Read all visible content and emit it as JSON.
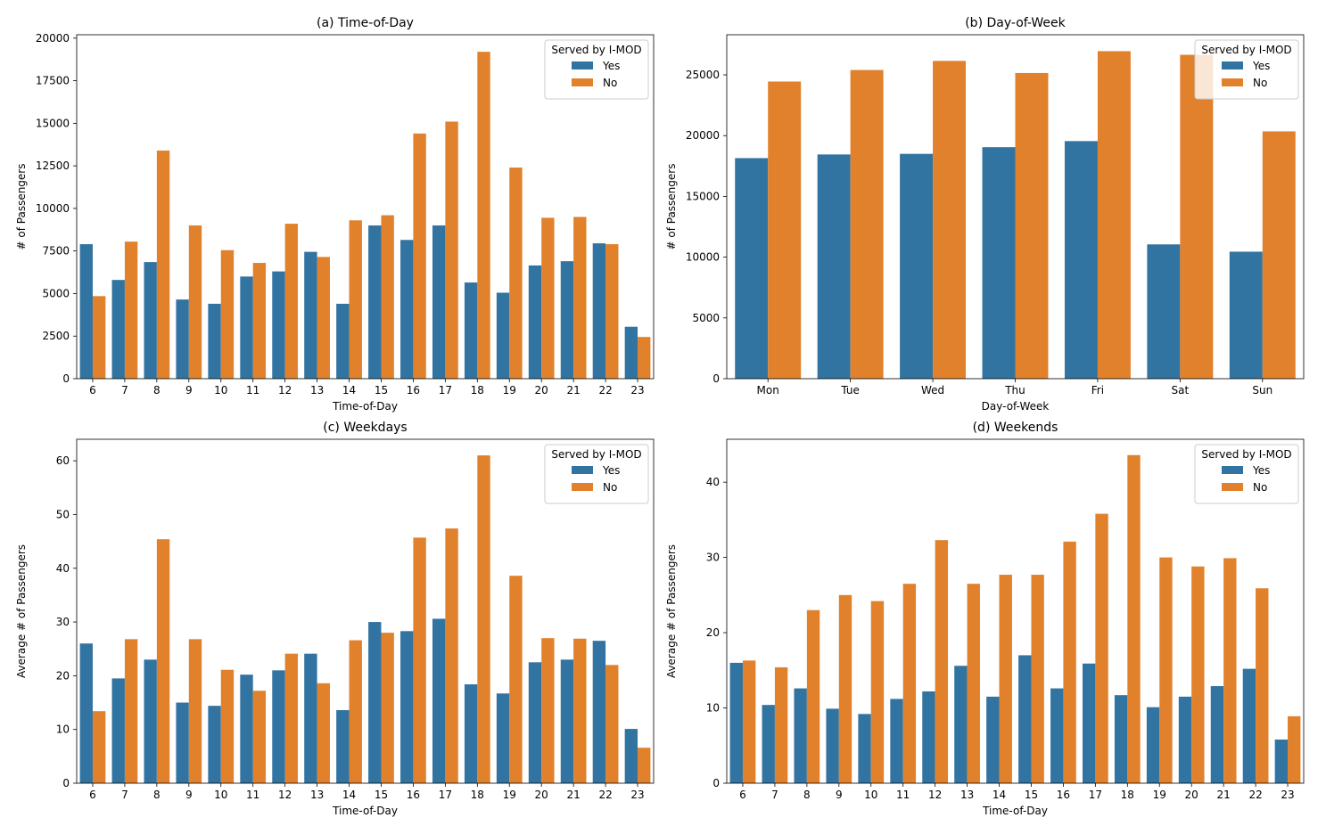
{
  "colors": {
    "yes": "#3274a1",
    "no": "#e1812c"
  },
  "legend": {
    "title": "Served by I-MOD",
    "labels": [
      "Yes",
      "No"
    ]
  },
  "chart_data": [
    {
      "type": "bar",
      "title": "(a) Time-of-Day",
      "xlabel": "Time-of-Day",
      "ylabel": "# of Passengers",
      "categories": [
        "6",
        "7",
        "8",
        "9",
        "10",
        "11",
        "12",
        "13",
        "14",
        "15",
        "16",
        "17",
        "18",
        "19",
        "20",
        "21",
        "22",
        "23"
      ],
      "ylim": [
        0,
        20200
      ],
      "yticks": [
        0,
        2500,
        5000,
        7500,
        10000,
        12500,
        15000,
        17500,
        20000
      ],
      "grid": false,
      "legend_position": "top-right",
      "series": [
        {
          "name": "Yes",
          "values": [
            7900,
            5800,
            6850,
            4650,
            4400,
            6000,
            6300,
            7450,
            4400,
            9000,
            8150,
            9000,
            5650,
            5050,
            6650,
            6900,
            7950,
            3050
          ]
        },
        {
          "name": "No",
          "values": [
            4850,
            8050,
            13400,
            9000,
            7550,
            6800,
            9100,
            7150,
            9300,
            9600,
            14400,
            15100,
            19200,
            12400,
            9450,
            9500,
            7900,
            2450
          ]
        }
      ]
    },
    {
      "type": "bar",
      "title": "(b) Day-of-Week",
      "xlabel": "Day-of-Week",
      "ylabel": "# of Passengers",
      "categories": [
        "Mon",
        "Tue",
        "Wed",
        "Thu",
        "Fri",
        "Sat",
        "Sun"
      ],
      "ylim": [
        0,
        28300
      ],
      "yticks": [
        0,
        5000,
        10000,
        15000,
        20000,
        25000
      ],
      "grid": false,
      "legend_position": "top-right",
      "series": [
        {
          "name": "Yes",
          "values": [
            18150,
            18450,
            18500,
            19050,
            19550,
            11050,
            10450
          ]
        },
        {
          "name": "No",
          "values": [
            24450,
            25400,
            26150,
            25150,
            26950,
            26650,
            20350
          ]
        }
      ]
    },
    {
      "type": "bar",
      "title": "(c) Weekdays",
      "xlabel": "Time-of-Day",
      "ylabel": "Average # of Passengers",
      "categories": [
        "6",
        "7",
        "8",
        "9",
        "10",
        "11",
        "12",
        "13",
        "14",
        "15",
        "16",
        "17",
        "18",
        "19",
        "20",
        "21",
        "22",
        "23"
      ],
      "ylim": [
        0,
        64
      ],
      "yticks": [
        0,
        10,
        20,
        30,
        40,
        50,
        60
      ],
      "grid": false,
      "legend_position": "top-right",
      "series": [
        {
          "name": "Yes",
          "values": [
            26.0,
            19.5,
            23.0,
            15.0,
            14.4,
            20.2,
            21.0,
            24.1,
            13.6,
            30.0,
            28.3,
            30.6,
            18.4,
            16.7,
            22.5,
            23.0,
            26.5,
            10.1
          ]
        },
        {
          "name": "No",
          "values": [
            13.4,
            26.8,
            45.4,
            26.8,
            21.1,
            17.2,
            24.1,
            18.6,
            26.6,
            28.0,
            45.7,
            47.4,
            61.0,
            38.6,
            27.0,
            26.9,
            22.0,
            6.6
          ]
        }
      ]
    },
    {
      "type": "bar",
      "title": "(d) Weekends",
      "xlabel": "Time-of-Day",
      "ylabel": "Average # of Passengers",
      "categories": [
        "6",
        "7",
        "8",
        "9",
        "10",
        "11",
        "12",
        "13",
        "14",
        "15",
        "16",
        "17",
        "18",
        "19",
        "20",
        "21",
        "22",
        "23"
      ],
      "ylim": [
        0,
        45.7
      ],
      "yticks": [
        0,
        10,
        20,
        30,
        40
      ],
      "grid": false,
      "legend_position": "top-right",
      "series": [
        {
          "name": "Yes",
          "values": [
            16.0,
            10.4,
            12.6,
            9.9,
            9.2,
            11.2,
            12.2,
            15.6,
            11.5,
            17.0,
            12.6,
            15.9,
            11.7,
            10.1,
            11.5,
            12.9,
            15.2,
            5.8
          ]
        },
        {
          "name": "No",
          "values": [
            16.3,
            15.4,
            23.0,
            25.0,
            24.2,
            26.5,
            32.3,
            26.5,
            27.7,
            27.7,
            32.1,
            35.8,
            43.6,
            30.0,
            28.8,
            29.9,
            25.9,
            8.9
          ]
        }
      ]
    }
  ]
}
